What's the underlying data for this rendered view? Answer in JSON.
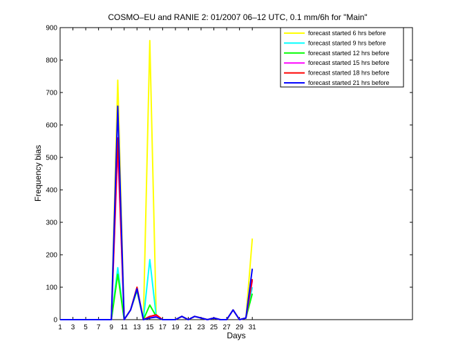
{
  "chart_data": {
    "type": "line",
    "title": "COSMO–EU and RANIE 2: 01/2007 06–12 UTC, 0.1 mm/6h for \"Main\"",
    "xlabel": "Days",
    "ylabel": "Frequency bias",
    "xlim": [
      1,
      56
    ],
    "ylim": [
      0,
      900
    ],
    "xticks": [
      1,
      3,
      5,
      7,
      9,
      11,
      13,
      15,
      17,
      19,
      21,
      23,
      25,
      27,
      29,
      31
    ],
    "yticks": [
      0,
      100,
      200,
      300,
      400,
      500,
      600,
      700,
      800,
      900
    ],
    "legend_position": "top-right",
    "grid": false,
    "x": [
      1,
      2,
      3,
      4,
      5,
      6,
      7,
      8,
      9,
      10,
      11,
      12,
      13,
      14,
      15,
      16,
      17,
      18,
      19,
      20,
      21,
      22,
      23,
      24,
      25,
      26,
      27,
      28,
      29,
      30,
      31
    ],
    "series": [
      {
        "name": "forecast started 6 hrs before",
        "color": "#ffff00",
        "values": [
          0,
          0,
          0,
          0,
          0,
          0,
          0,
          0,
          0,
          738,
          0,
          30,
          90,
          0,
          860,
          10,
          0,
          0,
          0,
          10,
          0,
          10,
          5,
          0,
          5,
          0,
          0,
          30,
          0,
          5,
          250
        ]
      },
      {
        "name": "forecast started 9 hrs before",
        "color": "#00ffff",
        "values": [
          0,
          0,
          0,
          0,
          0,
          0,
          0,
          0,
          0,
          160,
          0,
          30,
          90,
          0,
          185,
          10,
          0,
          0,
          0,
          10,
          0,
          10,
          5,
          0,
          5,
          0,
          0,
          30,
          0,
          5,
          100
        ]
      },
      {
        "name": "forecast started 12 hrs before",
        "color": "#00ff00",
        "values": [
          0,
          0,
          0,
          0,
          0,
          0,
          0,
          0,
          0,
          140,
          0,
          30,
          90,
          0,
          45,
          10,
          0,
          0,
          0,
          10,
          0,
          10,
          5,
          0,
          5,
          0,
          0,
          30,
          0,
          5,
          80
        ]
      },
      {
        "name": "forecast started 15 hrs before",
        "color": "#ff00ff",
        "values": [
          0,
          0,
          0,
          0,
          0,
          0,
          0,
          0,
          0,
          530,
          0,
          30,
          95,
          0,
          10,
          10,
          0,
          0,
          0,
          10,
          0,
          10,
          5,
          0,
          5,
          0,
          0,
          30,
          0,
          5,
          120
        ]
      },
      {
        "name": "forecast started 18 hrs before",
        "color": "#ff0000",
        "values": [
          0,
          0,
          0,
          0,
          0,
          0,
          0,
          0,
          0,
          560,
          0,
          30,
          100,
          0,
          10,
          15,
          0,
          0,
          0,
          10,
          0,
          10,
          5,
          0,
          5,
          0,
          0,
          30,
          0,
          5,
          125
        ]
      },
      {
        "name": "forecast started 21 hrs before",
        "color": "#0000ff",
        "values": [
          0,
          0,
          0,
          0,
          0,
          0,
          0,
          0,
          0,
          658,
          0,
          30,
          95,
          0,
          5,
          8,
          0,
          0,
          0,
          10,
          0,
          10,
          5,
          0,
          5,
          0,
          0,
          30,
          0,
          5,
          157
        ]
      }
    ]
  }
}
